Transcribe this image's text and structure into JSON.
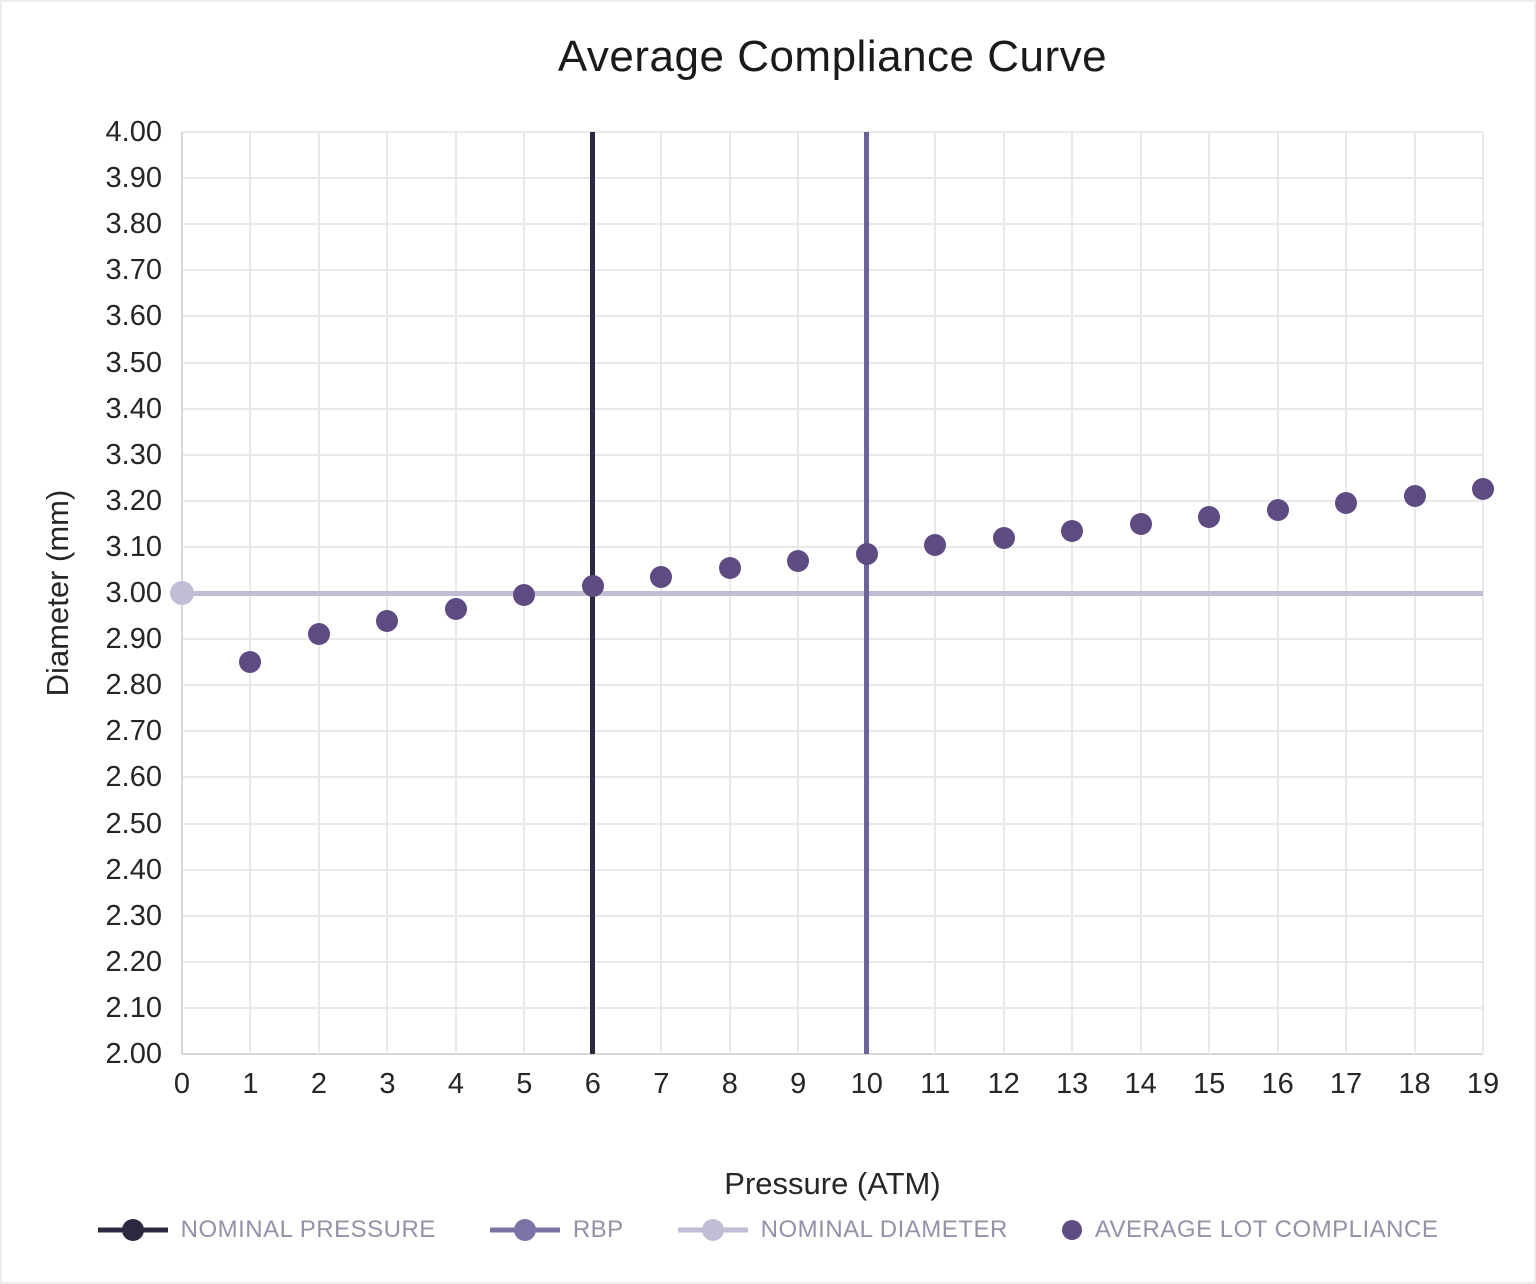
{
  "chart_data": {
    "type": "scatter",
    "title": "Average Compliance Curve",
    "xlabel": "Pressure (ATM)",
    "ylabel": "Diameter (mm)",
    "xlim": [
      0,
      19
    ],
    "ylim": [
      2.0,
      4.0
    ],
    "grid": true,
    "legend_position": "bottom",
    "x_ticks": [
      0,
      1,
      2,
      3,
      4,
      5,
      6,
      7,
      8,
      9,
      10,
      11,
      12,
      13,
      14,
      15,
      16,
      17,
      18,
      19
    ],
    "x_tick_labels": [
      "0",
      "1",
      "2",
      "3",
      "4",
      "5",
      "6",
      "7",
      "8",
      "9",
      "10",
      "11",
      "12",
      "13",
      "14",
      "15",
      "16",
      "17",
      "18",
      "19"
    ],
    "y_ticks": [
      4.0,
      3.9,
      3.8,
      3.7,
      3.6,
      3.5,
      3.4,
      3.3,
      3.2,
      3.1,
      3.0,
      2.9,
      2.8,
      2.7,
      2.6,
      2.5,
      2.4,
      2.3,
      2.2,
      2.1,
      2.0
    ],
    "y_tick_labels": [
      "4.00",
      "3.90",
      "3.80",
      "3.70",
      "3.60",
      "3.50",
      "3.40",
      "3.30",
      "3.20",
      "3.10",
      "3.00",
      "2.90",
      "2.80",
      "2.70",
      "2.60",
      "2.50",
      "2.40",
      "2.30",
      "2.20",
      "2.10",
      "2.00"
    ],
    "series": [
      {
        "name": "NOMINAL PRESSURE",
        "type": "vline",
        "x": 6,
        "color": "#2b2940"
      },
      {
        "name": "RBP",
        "type": "vline",
        "x": 10,
        "color": "#6a649a"
      },
      {
        "name": "NOMINAL DIAMETER",
        "type": "hline",
        "y": 3.0,
        "marker_x": 0,
        "color": "#c2bdd5"
      },
      {
        "name": "AVERAGE LOT COMPLIANCE",
        "type": "scatter",
        "color": "#5e4b82",
        "x": [
          1,
          2,
          3,
          4,
          5,
          6,
          7,
          8,
          9,
          10,
          11,
          12,
          13,
          14,
          15,
          16,
          17,
          18,
          19
        ],
        "y": [
          2.85,
          2.91,
          2.94,
          2.965,
          2.995,
          3.015,
          3.035,
          3.055,
          3.07,
          3.085,
          3.105,
          3.12,
          3.135,
          3.15,
          3.165,
          3.18,
          3.195,
          3.21,
          3.225
        ]
      }
    ],
    "legend": [
      {
        "label": "NOMINAL PRESSURE",
        "swatch": "line-marker",
        "color": "#2b2940"
      },
      {
        "label": "RBP",
        "swatch": "line-marker",
        "color": "#7a73a6"
      },
      {
        "label": "NOMINAL DIAMETER",
        "swatch": "line-marker",
        "color": "#c2bdd5"
      },
      {
        "label": "AVERAGE LOT COMPLIANCE",
        "swatch": "marker",
        "color": "#5e4b82"
      }
    ],
    "colors": {
      "grid": "#e9e9e9",
      "axis_line": "#d7d7d7",
      "text": "#262626",
      "title_text": "#1a1a1a",
      "legend_text": "#9491a8",
      "background": "#ffffff"
    }
  }
}
